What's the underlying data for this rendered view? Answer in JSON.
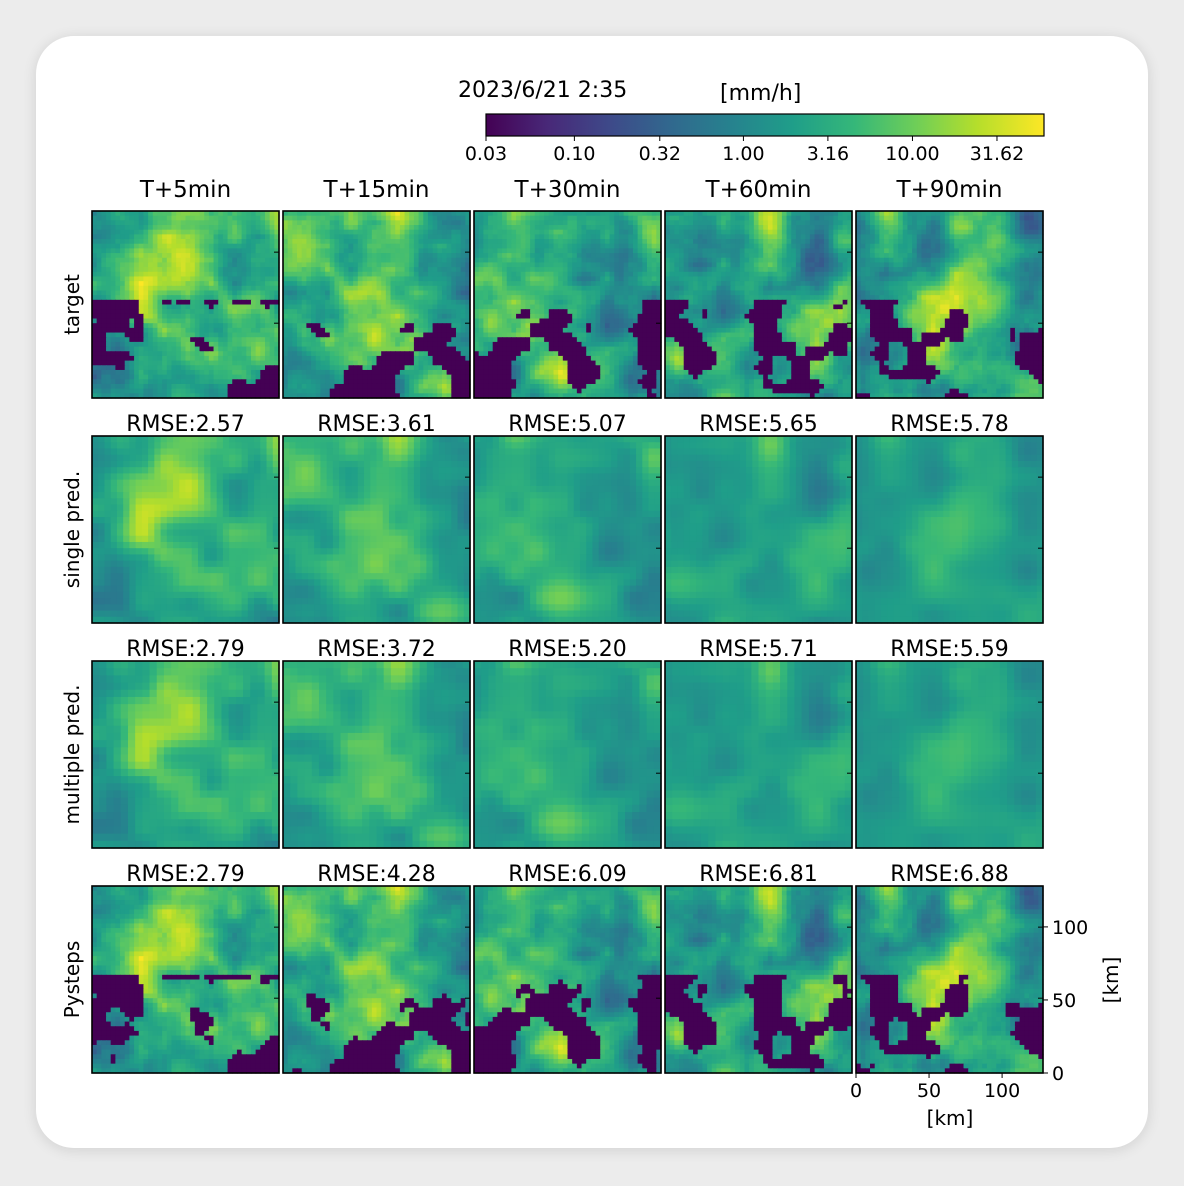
{
  "chart_data": {
    "type": "heatmap",
    "timestamp": "2023/6/21 2:35",
    "colorbar": {
      "unit": "[mm/h]",
      "ticks": [
        "0.03",
        "0.10",
        "0.32",
        "1.00",
        "3.16",
        "10.00",
        "31.62"
      ],
      "range": [
        0.03,
        60
      ],
      "scale": "log",
      "colormap": "viridis"
    },
    "columns": [
      "T+5min",
      "T+15min",
      "T+30min",
      "T+60min",
      "T+90min"
    ],
    "rows": [
      {
        "label": "target",
        "rmse": []
      },
      {
        "label": "single pred.",
        "rmse": [
          "RMSE:2.57",
          "RMSE:3.61",
          "RMSE:5.07",
          "RMSE:5.65",
          "RMSE:5.78"
        ]
      },
      {
        "label": "multiple pred.",
        "rmse": [
          "RMSE:2.79",
          "RMSE:3.72",
          "RMSE:5.20",
          "RMSE:5.71",
          "RMSE:5.59"
        ]
      },
      {
        "label": "Pysteps",
        "rmse": [
          "RMSE:2.79",
          "RMSE:4.28",
          "RMSE:6.09",
          "RMSE:6.81",
          "RMSE:6.88"
        ]
      }
    ],
    "axes": {
      "xlabel": "[km]",
      "ylabel": "[km]",
      "xticks": [
        "0",
        "50",
        "100"
      ],
      "yticks": [
        "0",
        "50",
        "100"
      ],
      "range_km": [
        0,
        128
      ]
    }
  }
}
